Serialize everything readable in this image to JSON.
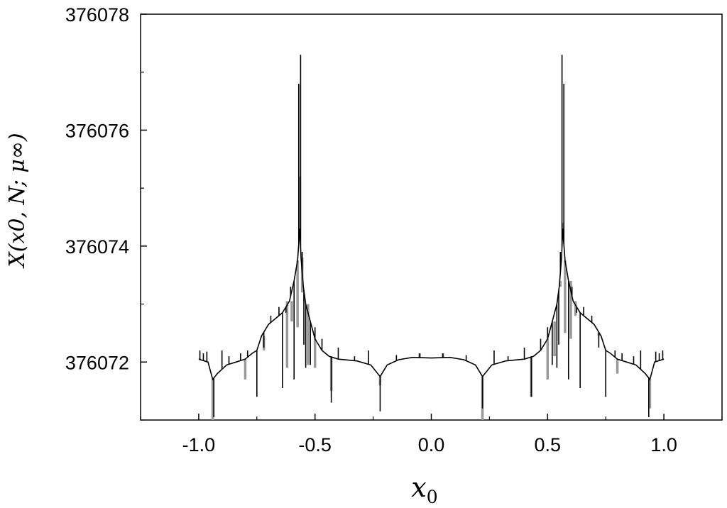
{
  "chart_data": {
    "type": "line",
    "title": "",
    "xlabel": "x",
    "xlabel_sub": "0",
    "ylabel": "X(x0, N; μ∞)",
    "xlim": [
      -1.25,
      1.25
    ],
    "ylim": [
      376071,
      376078
    ],
    "xticks": [
      {
        "value": -1.0,
        "label": "-1.0"
      },
      {
        "value": -0.5,
        "label": "-0.5"
      },
      {
        "value": 0.0,
        "label": "0.0"
      },
      {
        "value": 0.5,
        "label": "0.5"
      },
      {
        "value": 1.0,
        "label": "1.0"
      }
    ],
    "yticks": [
      {
        "value": 376072,
        "label": "376072"
      },
      {
        "value": 376074,
        "label": "376074"
      },
      {
        "value": 376076,
        "label": "376076"
      },
      {
        "value": 376078,
        "label": "376078"
      }
    ],
    "grid": false,
    "legend": "none",
    "series": [
      {
        "color": "#9a9a9a",
        "points": [
          [
            -0.94,
            376071.0
          ],
          [
            -0.8,
            376071.7
          ],
          [
            -0.72,
            376072.2
          ],
          [
            -0.62,
            376071.9
          ],
          [
            -0.6,
            376072.7
          ],
          [
            -0.575,
            376072.6
          ],
          [
            -0.565,
            376075.2
          ],
          [
            -0.555,
            376073.2
          ],
          [
            -0.53,
            376071.95
          ],
          [
            -0.5,
            376071.9
          ],
          [
            -0.43,
            376071.5
          ],
          [
            -0.22,
            376071.6
          ],
          [
            -0.05,
            376072.15
          ],
          [
            0.05,
            376072.15
          ],
          [
            0.22,
            376071.0
          ],
          [
            0.43,
            376071.4
          ],
          [
            0.5,
            376071.7
          ],
          [
            0.53,
            376072.1
          ],
          [
            0.555,
            376073.4
          ],
          [
            0.565,
            376074.4
          ],
          [
            0.575,
            376072.5
          ],
          [
            0.6,
            376072.4
          ],
          [
            0.62,
            376072.8
          ],
          [
            0.72,
            376072.5
          ],
          [
            0.8,
            376071.8
          ],
          [
            0.94,
            376071.2
          ]
        ]
      },
      {
        "color": "#000000",
        "profile": [
          [
            -1.0,
            376072.05
          ],
          [
            -0.96,
            376072.0
          ],
          [
            -0.94,
            376071.7
          ],
          [
            -0.92,
            376071.8
          ],
          [
            -0.88,
            376071.95
          ],
          [
            -0.84,
            376072.0
          ],
          [
            -0.8,
            376072.05
          ],
          [
            -0.77,
            376072.15
          ],
          [
            -0.75,
            376072.2
          ],
          [
            -0.73,
            376072.45
          ],
          [
            -0.7,
            376072.65
          ],
          [
            -0.67,
            376072.75
          ],
          [
            -0.64,
            376072.85
          ],
          [
            -0.61,
            376073.05
          ],
          [
            -0.59,
            376073.4
          ],
          [
            -0.575,
            376073.75
          ],
          [
            -0.565,
            376074.3
          ],
          [
            -0.56,
            376073.8
          ],
          [
            -0.55,
            376073.3
          ],
          [
            -0.54,
            376073.0
          ],
          [
            -0.52,
            376072.7
          ],
          [
            -0.5,
            376072.4
          ],
          [
            -0.47,
            376072.2
          ],
          [
            -0.44,
            376072.1
          ],
          [
            -0.4,
            376072.05
          ],
          [
            -0.32,
            376072.02
          ],
          [
            -0.26,
            376071.95
          ],
          [
            -0.22,
            376071.75
          ],
          [
            -0.19,
            376071.95
          ],
          [
            -0.14,
            376072.04
          ],
          [
            -0.08,
            376072.08
          ],
          [
            0.0,
            376072.07
          ],
          [
            0.08,
            376072.08
          ],
          [
            0.14,
            376072.04
          ],
          [
            0.19,
            376071.95
          ],
          [
            0.22,
            376071.75
          ],
          [
            0.26,
            376071.95
          ],
          [
            0.32,
            376072.02
          ],
          [
            0.4,
            376072.05
          ],
          [
            0.44,
            376072.1
          ],
          [
            0.47,
            376072.2
          ],
          [
            0.5,
            376072.4
          ],
          [
            0.52,
            376072.7
          ],
          [
            0.54,
            376073.0
          ],
          [
            0.55,
            376073.3
          ],
          [
            0.56,
            376073.8
          ],
          [
            0.565,
            376074.3
          ],
          [
            0.575,
            376073.75
          ],
          [
            0.59,
            376073.4
          ],
          [
            0.61,
            376073.05
          ],
          [
            0.64,
            376072.85
          ],
          [
            0.67,
            376072.75
          ],
          [
            0.7,
            376072.65
          ],
          [
            0.73,
            376072.45
          ],
          [
            0.75,
            376072.2
          ],
          [
            0.77,
            376072.15
          ],
          [
            0.8,
            376072.05
          ],
          [
            0.84,
            376072.0
          ],
          [
            0.88,
            376071.95
          ],
          [
            0.92,
            376071.8
          ],
          [
            0.94,
            376071.7
          ],
          [
            0.96,
            376072.0
          ],
          [
            1.0,
            376072.05
          ]
        ],
        "spikes": [
          [
            -0.995,
            376072.2
          ],
          [
            -0.98,
            376072.15
          ],
          [
            -0.965,
            376072.18
          ],
          [
            -0.935,
            376071.05
          ],
          [
            -0.9,
            376072.2
          ],
          [
            -0.87,
            376072.1
          ],
          [
            -0.82,
            376072.15
          ],
          [
            -0.79,
            376072.2
          ],
          [
            -0.75,
            376071.4
          ],
          [
            -0.72,
            376072.25
          ],
          [
            -0.69,
            376072.8
          ],
          [
            -0.655,
            376072.95
          ],
          [
            -0.64,
            376071.55
          ],
          [
            -0.625,
            376072.85
          ],
          [
            -0.605,
            376073.3
          ],
          [
            -0.59,
            376071.7
          ],
          [
            -0.57,
            376076.8
          ],
          [
            -0.562,
            376077.3
          ],
          [
            -0.555,
            376073.9
          ],
          [
            -0.548,
            376072.3
          ],
          [
            -0.54,
            376071.9
          ],
          [
            -0.52,
            376071.95
          ],
          [
            -0.5,
            376072.6
          ],
          [
            -0.47,
            376072.4
          ],
          [
            -0.43,
            376071.3
          ],
          [
            -0.4,
            376072.25
          ],
          [
            -0.33,
            376072.1
          ],
          [
            -0.27,
            376072.2
          ],
          [
            -0.22,
            376071.15
          ],
          [
            -0.15,
            376072.12
          ],
          [
            -0.05,
            376072.15
          ],
          [
            0.05,
            376072.15
          ],
          [
            0.15,
            376072.12
          ],
          [
            0.22,
            376071.2
          ],
          [
            0.27,
            376072.2
          ],
          [
            0.33,
            376072.1
          ],
          [
            0.4,
            376072.25
          ],
          [
            0.43,
            376071.4
          ],
          [
            0.47,
            376072.4
          ],
          [
            0.5,
            376072.6
          ],
          [
            0.52,
            376071.95
          ],
          [
            0.54,
            376071.9
          ],
          [
            0.548,
            376072.3
          ],
          [
            0.555,
            376073.9
          ],
          [
            0.562,
            376077.3
          ],
          [
            0.57,
            376076.8
          ],
          [
            0.59,
            376071.7
          ],
          [
            0.605,
            376073.3
          ],
          [
            0.625,
            376072.85
          ],
          [
            0.64,
            376071.55
          ],
          [
            0.655,
            376072.95
          ],
          [
            0.69,
            376072.8
          ],
          [
            0.72,
            376072.25
          ],
          [
            0.75,
            376071.4
          ],
          [
            0.79,
            376072.2
          ],
          [
            0.82,
            376072.15
          ],
          [
            0.87,
            376072.1
          ],
          [
            0.9,
            376072.2
          ],
          [
            0.935,
            376071.05
          ],
          [
            0.965,
            376072.18
          ],
          [
            0.98,
            376072.15
          ],
          [
            0.995,
            376072.2
          ]
        ]
      }
    ]
  }
}
